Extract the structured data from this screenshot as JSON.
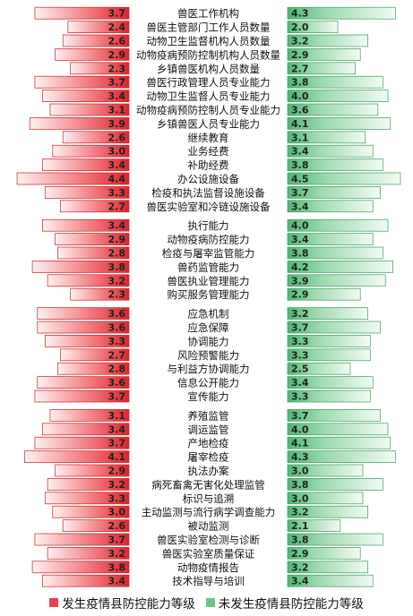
{
  "chart_data": {
    "type": "bar",
    "xlim": [
      0,
      5
    ],
    "categories": [
      "兽医工作机构",
      "兽医主管部门工作人员数量",
      "动物卫生监督机构人员数量",
      "动物疫病预防控制机构人员数量",
      "乡镇兽医机构人员数量",
      "兽医行政管理人员专业能力",
      "动物卫生监督人员专业能力",
      "动物疫病预防控制人员专业能力",
      "乡镇兽医人员专业能力",
      "继续教育",
      "业务经费",
      "补助经费",
      "办公设施设备",
      "检疫和执法监督设施设备",
      "兽医实验室和冷链设施设备",
      "执行能力",
      "动物疫病防控能力",
      "检疫与屠宰监管能力",
      "兽药监管能力",
      "兽医执业管理能力",
      "购买服务管理能力",
      "应急机制",
      "应急保障",
      "协调能力",
      "风险预警能力",
      "与利益方协调能力",
      "信息公开能力",
      "宣传能力",
      "养殖监管",
      "调运监管",
      "产地检疫",
      "屠宰检疫",
      "执法办案",
      "病死畜禽无害化处理监管",
      "标识与追溯",
      "主动监测与流行病学调查能力",
      "被动监测",
      "兽医实验室检测与诊断",
      "兽医实验室质量保证",
      "动物疫情报告",
      "技术指导与培训"
    ],
    "groups": [
      15,
      6,
      7,
      13
    ],
    "series": [
      {
        "name": "发生疫情县防控能力等级",
        "values": [
          3.7,
          2.4,
          2.6,
          2.9,
          2.3,
          3.7,
          3.4,
          3.1,
          3.9,
          2.6,
          3.0,
          3.4,
          4.4,
          3.3,
          2.7,
          3.4,
          2.9,
          2.8,
          3.8,
          3.2,
          2.3,
          3.6,
          3.6,
          3.3,
          2.7,
          2.8,
          3.6,
          3.7,
          3.1,
          3.4,
          3.7,
          4.1,
          2.9,
          3.2,
          3.3,
          3.0,
          2.6,
          3.7,
          3.2,
          3.8,
          3.4
        ]
      },
      {
        "name": "未发生疫情县防控能力等级",
        "values": [
          4.3,
          2.0,
          3.2,
          2.9,
          2.7,
          3.8,
          4.0,
          3.6,
          4.1,
          3.1,
          3.4,
          3.8,
          4.5,
          3.7,
          3.4,
          4.0,
          3.4,
          3.8,
          4.2,
          3.9,
          2.9,
          3.2,
          3.7,
          3.3,
          3.3,
          2.5,
          3.4,
          3.3,
          3.7,
          4.0,
          4.1,
          4.3,
          3.0,
          3.8,
          3.0,
          3.2,
          2.1,
          3.8,
          2.9,
          3.2,
          3.4
        ]
      }
    ],
    "colors": {
      "left": "#e8424a",
      "right": "#6cc48a"
    }
  }
}
